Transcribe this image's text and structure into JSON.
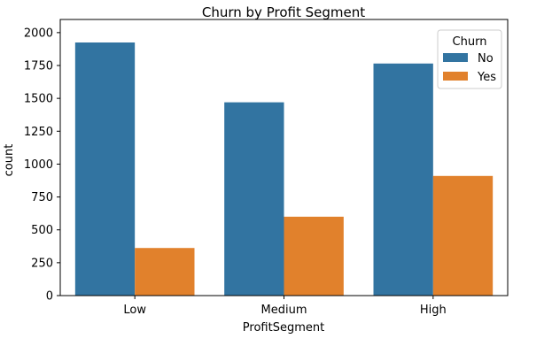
{
  "chart_data": {
    "type": "bar",
    "title": "Churn by Profit Segment",
    "xlabel": "ProfitSegment",
    "ylabel": "count",
    "categories": [
      "Low",
      "Medium",
      "High"
    ],
    "series": [
      {
        "name": "No",
        "values": [
          1925,
          1470,
          1765
        ],
        "color": "#3274a1"
      },
      {
        "name": "Yes",
        "values": [
          362,
          600,
          910
        ],
        "color": "#e1812c"
      }
    ],
    "ylim": [
      0,
      2100
    ],
    "yticks": [
      0,
      250,
      500,
      750,
      1000,
      1250,
      1500,
      1750,
      2000
    ],
    "legend": {
      "title": "Churn",
      "position": "top-right"
    },
    "grid": false
  }
}
